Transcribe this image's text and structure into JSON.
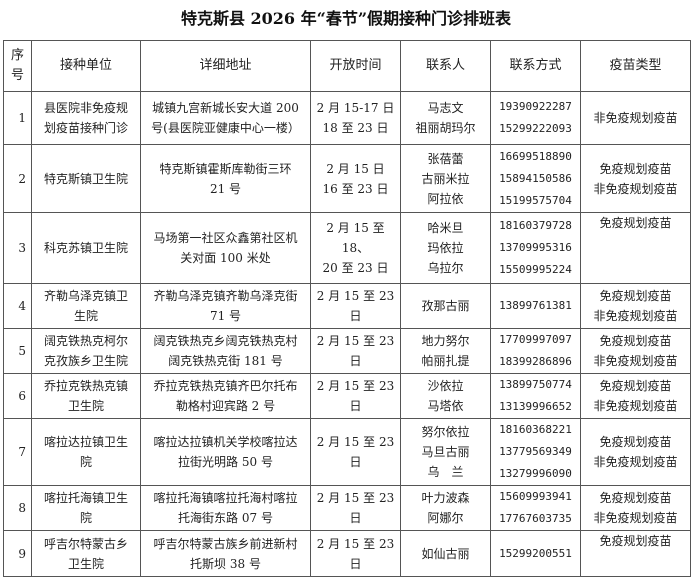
{
  "title": "特克斯县 2026 年“春节”假期接种门诊排班表",
  "headers": [
    "序\n号",
    "接种单位",
    "详细地址",
    "开放时间",
    "联系人",
    "联系方式",
    "疫苗类型"
  ],
  "rows": [
    {
      "no": "1",
      "unit": "县医院非免疫规\n划疫苗接种门诊",
      "address": "城镇九宫新城长安大道 200\n号(县医院亚健康中心一楼）",
      "time": "2 月 15-17 日\n18 至 23 日",
      "contacts": "马志文\n祖丽胡玛尔",
      "phones": "19390922287\n15299222093",
      "vaccine": "非免疫规划疫苗"
    },
    {
      "no": "2",
      "unit": "特克斯镇卫生院",
      "address": "特克斯镇霍斯库勒街三环\n21 号",
      "time": "2 月 15 日\n16 至 23 日",
      "contacts": "张蓓蕾\n古丽米拉\n阿拉依",
      "phones": "16699518890\n15894150586\n15199575704",
      "vaccine": "免疫规划疫苗\n非免疫规划疫苗"
    },
    {
      "no": "3",
      "unit": "科克苏镇卫生院",
      "address": "马场第一社区众鑫第社区机\n关对面 100 米处",
      "time": "2 月 15 至 18、\n20 至 23 日",
      "contacts": "哈米旦\n玛依拉\n乌拉尔",
      "phones": "18160379728\n13709995316\n15509995224",
      "vaccine": "免疫规划疫苗\n "
    },
    {
      "no": "4",
      "unit": "齐勒乌泽克镇卫\n生院",
      "address": "齐勒乌泽克镇齐勒乌泽克街\n71 号",
      "time": "2 月 15 至 23\n日",
      "contacts": "孜那古丽",
      "phones": "13899761381",
      "vaccine": "免疫规划疫苗\n非免疫规划疫苗"
    },
    {
      "no": "5",
      "unit": "阔克铁热克柯尔\n克孜族乡卫生院",
      "address": "阔克铁热克乡阔克铁热克村\n阔克铁热克街 181 号",
      "time": "2 月 15 至 23\n日",
      "contacts": "地力努尔\n帕丽扎提",
      "phones": "17709997097\n18399286896",
      "vaccine": "免疫规划疫苗\n非免疫规划疫苗"
    },
    {
      "no": "6",
      "unit": "乔拉克铁热克镇\n卫生院",
      "address": "乔拉克铁热克镇齐巴尔托布\n勒格村迎宾路 2 号",
      "time": "2 月 15 至 23\n日",
      "contacts": "沙依拉\n马塔依",
      "phones": "13899750774\n13139996652",
      "vaccine": "免疫规划疫苗\n非免疫规划疫苗"
    },
    {
      "no": "7",
      "unit": "喀拉达拉镇卫生\n院",
      "address": "喀拉达拉镇机关学校喀拉达\n拉街光明路 50 号",
      "time": "2 月 15 至 23\n日",
      "contacts": "努尔依拉\n马旦古丽\n乌　兰",
      "phones": "18160368221\n13779569349\n13279996090",
      "vaccine": "免疫规划疫苗\n非免疫规划疫苗"
    },
    {
      "no": "8",
      "unit": "喀拉托海镇卫生\n院",
      "address": "喀拉托海镇喀拉托海村喀拉\n托海街东路  07 号",
      "time": "2 月 15 至 23\n日",
      "contacts": "叶力波森\n阿娜尔",
      "phones": "15609993941\n17767603735",
      "vaccine": "免疫规划疫苗\n非免疫规划疫苗"
    },
    {
      "no": "9",
      "unit": "呼吉尔特蒙古乡\n卫生院",
      "address": "呼吉尔特蒙古族乡前进新村\n托斯坝 38 号",
      "time": "2 月 15 至 23\n日",
      "contacts": "如仙古丽",
      "phones": "15299200551",
      "vaccine": "免疫规划疫苗\n "
    }
  ]
}
